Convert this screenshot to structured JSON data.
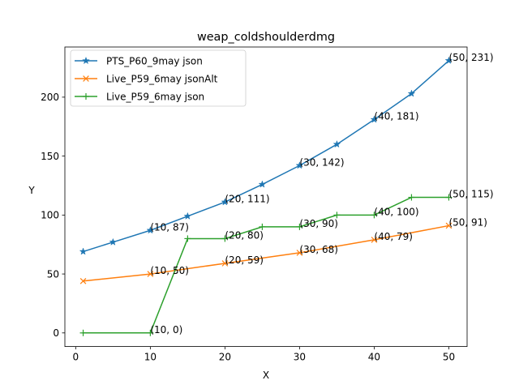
{
  "chart_data": {
    "type": "line",
    "title": "weap_coldshoulderdmg",
    "xlabel": "X",
    "ylabel": "Y",
    "xlim": [
      -1.45,
      52.45
    ],
    "ylim": [
      -11.55,
      242.55
    ],
    "xticks": [
      0,
      10,
      20,
      30,
      40,
      50
    ],
    "yticks": [
      0,
      50,
      100,
      150,
      200
    ],
    "grid": false,
    "legend_position": "upper left",
    "series": [
      {
        "name": "PTS_P60_9may json",
        "color": "#1f77b4",
        "marker": "star",
        "x": [
          1,
          5,
          10,
          15,
          20,
          25,
          30,
          35,
          40,
          45,
          50
        ],
        "y": [
          69,
          77,
          87,
          99,
          111,
          126,
          142,
          160,
          181,
          203,
          231
        ]
      },
      {
        "name": "Live_P59_6may jsonAlt",
        "color": "#ff7f0e",
        "marker": "x",
        "x": [
          1,
          10,
          20,
          30,
          40,
          50
        ],
        "y": [
          44,
          50,
          59,
          68,
          79,
          91
        ]
      },
      {
        "name": "Live_P59_6may json",
        "color": "#2ca02c",
        "marker": "plus",
        "x": [
          1,
          10,
          15,
          20,
          25,
          30,
          35,
          40,
          45,
          50
        ],
        "y": [
          0,
          0,
          80,
          80,
          90,
          90,
          100,
          100,
          115,
          115
        ]
      }
    ],
    "annotations": [
      {
        "text": "(10, 87)",
        "x": 10,
        "y": 87
      },
      {
        "text": "(20, 111)",
        "x": 20,
        "y": 111
      },
      {
        "text": "(30, 142)",
        "x": 30,
        "y": 142
      },
      {
        "text": "(40, 181)",
        "x": 40,
        "y": 181
      },
      {
        "text": "(50, 231)",
        "x": 50,
        "y": 231
      },
      {
        "text": "(10, 50)",
        "x": 10,
        "y": 50
      },
      {
        "text": "(20, 59)",
        "x": 20,
        "y": 59
      },
      {
        "text": "(30, 68)",
        "x": 30,
        "y": 68
      },
      {
        "text": "(40, 79)",
        "x": 40,
        "y": 79
      },
      {
        "text": "(50, 91)",
        "x": 50,
        "y": 91
      },
      {
        "text": "(10, 0)",
        "x": 10,
        "y": 0
      },
      {
        "text": "(20, 80)",
        "x": 20,
        "y": 80
      },
      {
        "text": "(30, 90)",
        "x": 30,
        "y": 90
      },
      {
        "text": "(40, 100)",
        "x": 40,
        "y": 100
      },
      {
        "text": "(50, 115)",
        "x": 50,
        "y": 115
      }
    ]
  }
}
